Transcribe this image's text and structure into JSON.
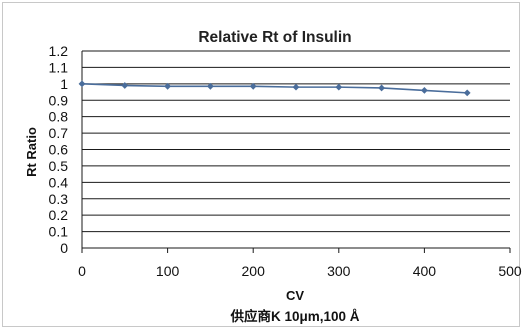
{
  "chart_data": {
    "type": "line",
    "title": "Relative Rt of Insulin",
    "xlabel": "CV",
    "ylabel": "Rt Ratio",
    "caption": "供应商K 10μm,100 Å",
    "xlim": [
      0,
      500
    ],
    "ylim": [
      0,
      1.2
    ],
    "xticks": [
      "0",
      "100",
      "200",
      "300",
      "400",
      "500"
    ],
    "yticks": [
      "0",
      "0.1",
      "0.2",
      "0.3",
      "0.4",
      "0.5",
      "0.6",
      "0.7",
      "0.8",
      "0.9",
      "1",
      "1.1",
      "1.2"
    ],
    "grid": true,
    "series": [
      {
        "color": "#4a6d9b",
        "x": [
          0,
          50,
          100,
          150,
          200,
          250,
          300,
          350,
          400,
          450
        ],
        "y": [
          1.0,
          0.99,
          0.985,
          0.985,
          0.985,
          0.98,
          0.98,
          0.975,
          0.96,
          0.945
        ]
      }
    ]
  }
}
